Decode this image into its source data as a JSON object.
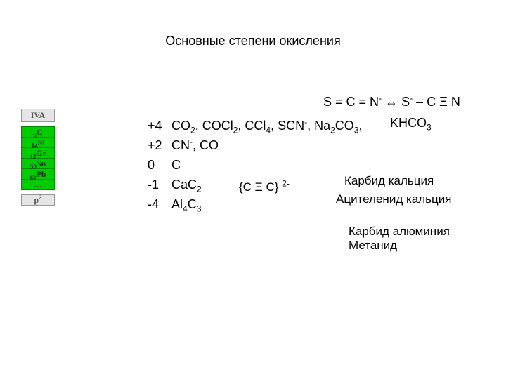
{
  "title": "Основные степени окисления",
  "group": {
    "header": "IVA",
    "elements": [
      {
        "num": "6",
        "sym": "C"
      },
      {
        "num": "14",
        "sym": "Si"
      },
      {
        "num": "32",
        "sym": "Ge"
      },
      {
        "num": "50",
        "sym": "Sn"
      },
      {
        "num": "82",
        "sym": "Pb"
      },
      {
        "num": "",
        "sym": "…"
      }
    ],
    "footer_base": "p",
    "footer_sup": "2"
  },
  "resonance": {
    "lhs": "S = C = N",
    "lhs_sup": "-",
    "arrow": "↔",
    "rhs1": "S",
    "rhs1_sup": "-",
    "dash": "–",
    "rhs2": "C Ξ N"
  },
  "ox": [
    {
      "n": "+4",
      "html": "CO<sub>2</sub>, COCl<sub>2</sub>, CCl<sub>4</sub>, SCN<sup>-</sup>, Na<sub>2</sub>CO<sub>3</sub>,"
    },
    {
      "n": "+2",
      "html": "CN<sup>-</sup>, CO"
    },
    {
      "n": "0",
      "html": "C"
    },
    {
      "n": "-1",
      "html": "CaC<sub>2</sub>"
    },
    {
      "n": "-4",
      "html": "Al<sub>4</sub>C<sub>3</sub>"
    }
  ],
  "khco3_html": "KHCO<sub>3</sub>",
  "ctriple_html": "{C Ξ C} <sup>2-</sup>",
  "labels": {
    "carbide_ca": "Карбид кальция",
    "acet": "Ацителенид кальция",
    "carbide_al": "Карбид алюминия",
    "methanide": "Метанид"
  },
  "colors": {
    "element_bg": "#00cc00",
    "element_border": "#008800",
    "header_bg": "#e5e5e5"
  }
}
